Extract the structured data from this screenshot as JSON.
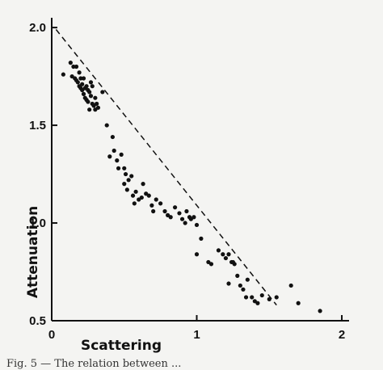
{
  "chart_data": {
    "type": "scatter",
    "title": "",
    "xlabel": "Scattering",
    "ylabel": "Attenuation",
    "xlim": [
      0,
      2.05
    ],
    "ylim": [
      0.5,
      2.05
    ],
    "x_ticks": [
      0,
      1,
      2
    ],
    "x_tick_labels": [
      "0",
      "1",
      "2"
    ],
    "y_ticks": [
      0.5,
      1.0,
      1.5,
      2.0
    ],
    "y_tick_labels": [
      "0.5",
      "1.0",
      "1.5",
      "2.0"
    ],
    "grid": false,
    "legend": "none",
    "colors": {
      "points": "#111111",
      "line": "#111111",
      "axes": "#111111"
    },
    "fit_line": {
      "style": "dashed",
      "points": [
        [
          0.03,
          1.99
        ],
        [
          1.55,
          0.58
        ]
      ]
    },
    "series": [
      {
        "x": [
          0.08,
          0.13,
          0.14,
          0.15,
          0.16,
          0.17,
          0.17,
          0.18,
          0.19,
          0.19,
          0.2,
          0.2,
          0.21,
          0.21,
          0.22,
          0.22,
          0.23,
          0.23,
          0.24,
          0.24,
          0.25,
          0.25,
          0.26,
          0.26,
          0.27,
          0.27,
          0.28,
          0.28,
          0.29,
          0.3,
          0.3,
          0.31,
          0.32,
          0.35,
          0.38,
          0.4,
          0.42,
          0.43,
          0.45,
          0.46,
          0.48,
          0.5,
          0.5,
          0.51,
          0.52,
          0.53,
          0.55,
          0.56,
          0.57,
          0.58,
          0.6,
          0.62,
          0.63,
          0.65,
          0.67,
          0.69,
          0.7,
          0.72,
          0.75,
          0.78,
          0.8,
          0.82,
          0.85,
          0.88,
          0.9,
          0.92,
          0.93,
          0.95,
          0.96,
          0.98,
          1.0,
          1.0,
          1.03,
          1.08,
          1.1,
          1.15,
          1.18,
          1.2,
          1.22,
          1.22,
          1.24,
          1.25,
          1.26,
          1.28,
          1.3,
          1.32,
          1.34,
          1.35,
          1.38,
          1.4,
          1.42,
          1.45,
          1.5,
          1.55,
          1.65,
          1.7,
          1.85
        ],
        "y": [
          1.76,
          1.82,
          1.75,
          1.8,
          1.74,
          1.73,
          1.8,
          1.72,
          1.7,
          1.77,
          1.69,
          1.74,
          1.68,
          1.71,
          1.66,
          1.74,
          1.64,
          1.69,
          1.63,
          1.7,
          1.62,
          1.68,
          1.67,
          1.58,
          1.65,
          1.72,
          1.61,
          1.7,
          1.6,
          1.58,
          1.64,
          1.61,
          1.59,
          1.67,
          1.5,
          1.34,
          1.44,
          1.37,
          1.32,
          1.28,
          1.35,
          1.2,
          1.28,
          1.25,
          1.17,
          1.22,
          1.24,
          1.14,
          1.1,
          1.16,
          1.12,
          1.13,
          1.2,
          1.15,
          1.14,
          1.09,
          1.06,
          1.12,
          1.1,
          1.06,
          1.04,
          1.03,
          1.08,
          1.05,
          1.02,
          1.0,
          1.06,
          1.03,
          1.02,
          1.03,
          0.99,
          0.84,
          0.92,
          0.8,
          0.79,
          0.86,
          0.84,
          0.82,
          0.69,
          0.84,
          0.8,
          0.8,
          0.79,
          0.73,
          0.68,
          0.66,
          0.62,
          0.71,
          0.62,
          0.6,
          0.59,
          0.63,
          0.61,
          0.62,
          0.68,
          0.59,
          0.55
        ]
      }
    ]
  },
  "caption": "Fig. 5 — The relation between ..."
}
